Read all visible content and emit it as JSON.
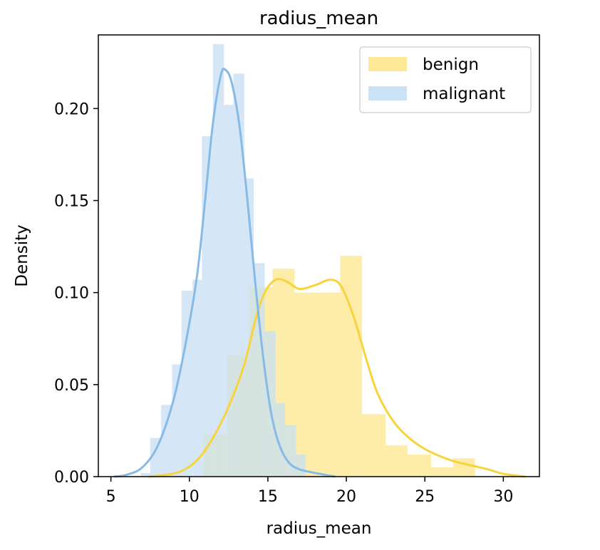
{
  "chart_data": {
    "type": "histogram",
    "title": "radius_mean",
    "xlabel": "radius_mean",
    "ylabel": "Density",
    "xlim": [
      4.2,
      32.3
    ],
    "ylim": [
      0,
      0.24
    ],
    "xticks": [
      5,
      10,
      15,
      20,
      25,
      30
    ],
    "yticks": [
      0.0,
      0.05,
      0.1,
      0.15,
      0.2
    ],
    "ytick_labels": [
      "0.00",
      "0.05",
      "0.10",
      "0.15",
      "0.20"
    ],
    "grid": false,
    "legend_position": "top-right",
    "series": [
      {
        "name": "benign",
        "color": "#FDE78C",
        "kde_color": "#F8D43C",
        "bins": [
          {
            "x0": 10.9,
            "x1": 12.4,
            "density": 0.023
          },
          {
            "x0": 12.4,
            "x1": 13.8,
            "density": 0.066
          },
          {
            "x0": 13.8,
            "x1": 15.3,
            "density": 0.103
          },
          {
            "x0": 15.3,
            "x1": 16.7,
            "density": 0.113
          },
          {
            "x0": 16.7,
            "x1": 18.2,
            "density": 0.1
          },
          {
            "x0": 18.2,
            "x1": 19.6,
            "density": 0.1
          },
          {
            "x0": 19.6,
            "x1": 21.0,
            "density": 0.12
          },
          {
            "x0": 21.0,
            "x1": 22.5,
            "density": 0.034
          },
          {
            "x0": 22.5,
            "x1": 23.9,
            "density": 0.017
          },
          {
            "x0": 23.9,
            "x1": 25.4,
            "density": 0.012
          },
          {
            "x0": 25.4,
            "x1": 26.8,
            "density": 0.005
          },
          {
            "x0": 26.8,
            "x1": 28.2,
            "density": 0.01
          }
        ],
        "kde": [
          [
            7.4,
            0.0
          ],
          [
            8.5,
            0.001
          ],
          [
            9.5,
            0.003
          ],
          [
            10.5,
            0.009
          ],
          [
            11.5,
            0.021
          ],
          [
            12.5,
            0.038
          ],
          [
            13.5,
            0.061
          ],
          [
            14.2,
            0.085
          ],
          [
            14.8,
            0.1
          ],
          [
            15.5,
            0.107
          ],
          [
            16.2,
            0.106
          ],
          [
            17.0,
            0.102
          ],
          [
            18.0,
            0.104
          ],
          [
            19.0,
            0.107
          ],
          [
            19.7,
            0.103
          ],
          [
            20.5,
            0.086
          ],
          [
            21.3,
            0.063
          ],
          [
            22.0,
            0.045
          ],
          [
            23.0,
            0.03
          ],
          [
            24.0,
            0.021
          ],
          [
            25.0,
            0.015
          ],
          [
            26.0,
            0.011
          ],
          [
            27.0,
            0.008
          ],
          [
            28.0,
            0.006
          ],
          [
            29.0,
            0.004
          ],
          [
            30.0,
            0.0015
          ],
          [
            31.4,
            0.0
          ]
        ]
      },
      {
        "name": "malignant",
        "color": "#C7DFF4",
        "kde_color": "#85BBE6",
        "bins": [
          {
            "x0": 6.9,
            "x1": 7.5,
            "density": 0.002
          },
          {
            "x0": 7.5,
            "x1": 8.2,
            "density": 0.021
          },
          {
            "x0": 8.2,
            "x1": 8.9,
            "density": 0.039
          },
          {
            "x0": 8.9,
            "x1": 9.5,
            "density": 0.061
          },
          {
            "x0": 9.5,
            "x1": 10.2,
            "density": 0.101
          },
          {
            "x0": 10.2,
            "x1": 10.8,
            "density": 0.107
          },
          {
            "x0": 10.8,
            "x1": 11.5,
            "density": 0.185
          },
          {
            "x0": 11.5,
            "x1": 12.2,
            "density": 0.235
          },
          {
            "x0": 12.2,
            "x1": 12.8,
            "density": 0.202
          },
          {
            "x0": 12.8,
            "x1": 13.5,
            "density": 0.219
          },
          {
            "x0": 13.5,
            "x1": 14.1,
            "density": 0.162
          },
          {
            "x0": 14.1,
            "x1": 14.8,
            "density": 0.116
          },
          {
            "x0": 14.8,
            "x1": 15.5,
            "density": 0.079
          },
          {
            "x0": 15.5,
            "x1": 16.1,
            "density": 0.04
          },
          {
            "x0": 16.1,
            "x1": 16.8,
            "density": 0.028
          },
          {
            "x0": 16.8,
            "x1": 17.4,
            "density": 0.012
          }
        ],
        "kde": [
          [
            5.2,
            0.0
          ],
          [
            6.0,
            0.001
          ],
          [
            7.0,
            0.005
          ],
          [
            8.0,
            0.017
          ],
          [
            9.0,
            0.042
          ],
          [
            9.8,
            0.074
          ],
          [
            10.5,
            0.11
          ],
          [
            11.0,
            0.15
          ],
          [
            11.5,
            0.192
          ],
          [
            12.0,
            0.218
          ],
          [
            12.3,
            0.221
          ],
          [
            12.7,
            0.214
          ],
          [
            13.2,
            0.19
          ],
          [
            13.7,
            0.15
          ],
          [
            14.2,
            0.105
          ],
          [
            14.7,
            0.065
          ],
          [
            15.2,
            0.035
          ],
          [
            15.7,
            0.018
          ],
          [
            16.3,
            0.008
          ],
          [
            17.0,
            0.004
          ],
          [
            18.0,
            0.002
          ],
          [
            19.3,
            0.0
          ]
        ]
      }
    ]
  }
}
